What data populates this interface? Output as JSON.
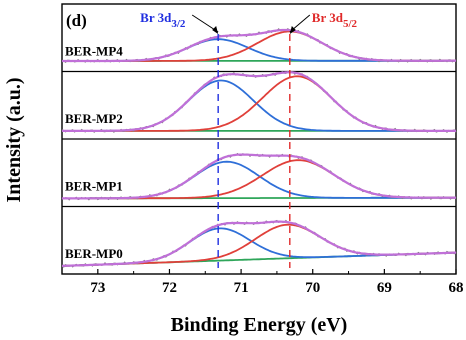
{
  "chart_data": {
    "type": "line",
    "panel_label": "(d)",
    "xlabel": "Binding Energy (eV)",
    "ylabel": "Intensity (a.u.)",
    "xlim": [
      73.5,
      68
    ],
    "x_ticks": [
      73,
      72,
      71,
      70,
      69,
      68
    ],
    "x_reversed": true,
    "grid": false,
    "reference_lines": [
      {
        "label_main": "Br 3d",
        "label_sub": "3/2",
        "x": 71.32,
        "color": "#1f2ee0",
        "style": "dashed"
      },
      {
        "label_main": "Br 3d",
        "label_sub": "5/2",
        "x": 70.32,
        "color": "#e02a2a",
        "style": "dashed"
      }
    ],
    "colors": {
      "raw": "#7a7a7a",
      "fit": "#c070d8",
      "peak_3_2": "#2f6fd8",
      "peak_5_2": "#e0403a",
      "background": "#2fa65a"
    },
    "samples": [
      {
        "name": "BER-MP4",
        "bg_y": [
          0.32,
          0.34
        ],
        "p32": {
          "center": 71.32,
          "height": 1.55,
          "sigma": 0.42
        },
        "p52": {
          "center": 70.32,
          "height": 2.1,
          "sigma": 0.45
        }
      },
      {
        "name": "BER-MP2",
        "bg_y": [
          0.15,
          0.15
        ],
        "p32": {
          "center": 71.28,
          "height": 3.6,
          "sigma": 0.45
        },
        "p52": {
          "center": 70.22,
          "height": 3.9,
          "sigma": 0.48
        }
      },
      {
        "name": "BER-MP1",
        "bg_y": [
          0.15,
          0.2
        ],
        "p32": {
          "center": 71.2,
          "height": 2.6,
          "sigma": 0.45
        },
        "p52": {
          "center": 70.2,
          "height": 2.7,
          "sigma": 0.5
        }
      },
      {
        "name": "BER-MP0",
        "bg_y": [
          0.15,
          1.1
        ],
        "p32": {
          "center": 71.3,
          "height": 2.3,
          "sigma": 0.42
        },
        "p52": {
          "center": 70.35,
          "height": 2.4,
          "sigma": 0.45
        }
      }
    ]
  }
}
